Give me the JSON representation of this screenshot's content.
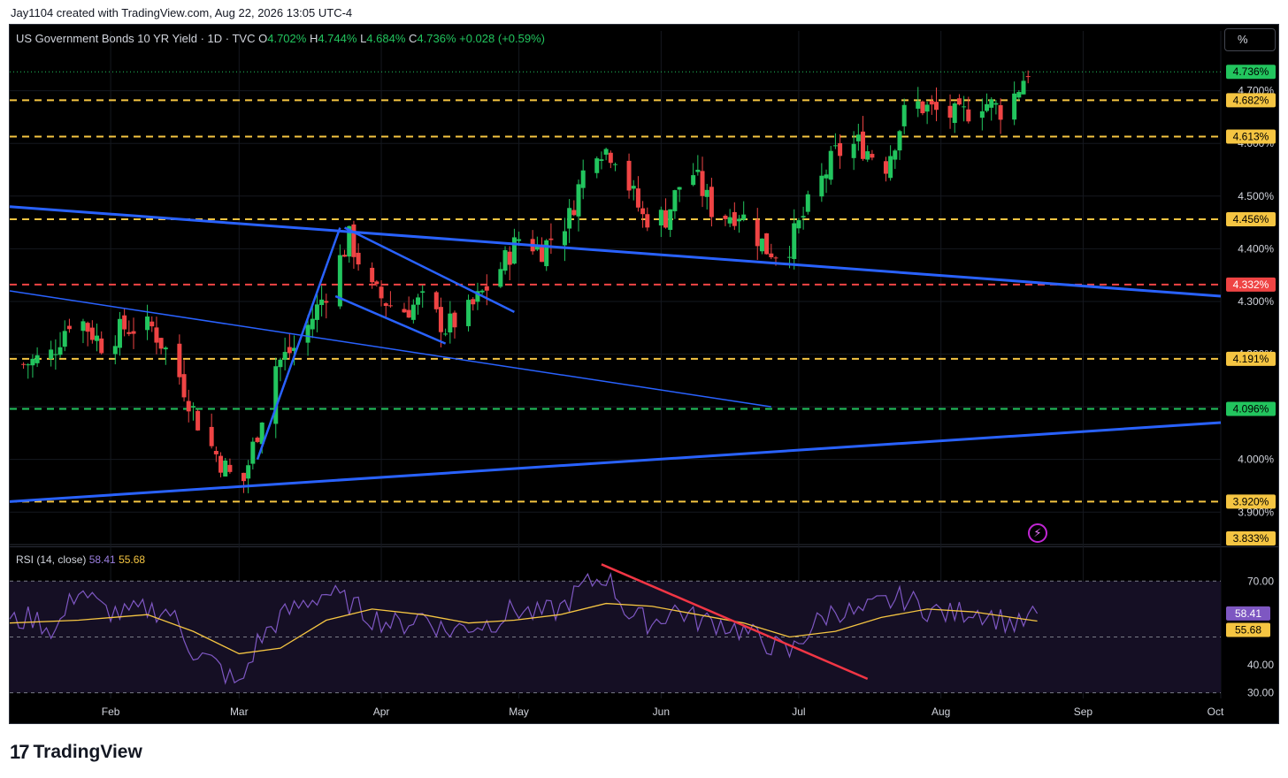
{
  "credit": "Jay1104 created with TradingView.com, Aug 22, 2026 13:05 UTC-4",
  "legend": {
    "symbol": "US Government Bonds 10 YR Yield · 1D · TVC",
    "open_label": "O",
    "open": "4.702%",
    "high_label": "H",
    "high": "4.744%",
    "low_label": "L",
    "low": "4.684%",
    "close_label": "C",
    "close": "4.736%",
    "change": "+0.028 (+0.59%)"
  },
  "scale_button": "%",
  "rsi_legend": {
    "label": "RSI (14, close)",
    "rsi": "58.41",
    "ma": "55.68"
  },
  "brand": "TradingView",
  "colors": {
    "up": "#22c55e",
    "down": "#ef4444",
    "trend": "#2962ff",
    "level": "#f5c542",
    "support": "#22c55e",
    "resistance": "#ef4444",
    "rsi": "#7e57c2",
    "rsi_ma": "#f5c542"
  },
  "chart_data": [
    {
      "type": "candlestick",
      "title": "US Government Bonds 10 YR Yield · 1D · TVC",
      "ylim": [
        3.84,
        4.78
      ],
      "y_ticks": [
        "4.700%",
        "4.600%",
        "4.500%",
        "4.400%",
        "4.300%",
        "4.200%",
        "4.100%",
        "4.000%",
        "3.900%"
      ],
      "x_ticks": [
        "Feb",
        "Mar",
        "Apr",
        "May",
        "Jun",
        "Jul",
        "Aug",
        "Sep",
        "Oct"
      ],
      "last": 4.736,
      "price_labels": [
        {
          "value": "4.736%",
          "kind": "last"
        },
        {
          "value": "4.682%",
          "kind": "level"
        },
        {
          "value": "4.613%",
          "kind": "level"
        },
        {
          "value": "4.456%",
          "kind": "level"
        },
        {
          "value": "4.332%",
          "kind": "resistance"
        },
        {
          "value": "4.191%",
          "kind": "level"
        },
        {
          "value": "4.096%",
          "kind": "support"
        },
        {
          "value": "3.920%",
          "kind": "level"
        },
        {
          "value": "3.833%",
          "kind": "level"
        }
      ],
      "close_path": [
        [
          "2026-01-13",
          4.18
        ],
        [
          "2026-01-19",
          4.2
        ],
        [
          "2026-01-24",
          4.28
        ],
        [
          "2026-01-30",
          4.22
        ],
        [
          "2026-02-04",
          4.25
        ],
        [
          "2026-02-10",
          4.25
        ],
        [
          "2026-02-15",
          4.18
        ],
        [
          "2026-02-21",
          4.05
        ],
        [
          "2026-02-27",
          3.97
        ],
        [
          "2026-03-02",
          3.96
        ],
        [
          "2026-03-09",
          4.18
        ],
        [
          "2026-03-14",
          4.22
        ],
        [
          "2026-03-20",
          4.32
        ],
        [
          "2026-03-25",
          4.42
        ],
        [
          "2026-03-30",
          4.32
        ],
        [
          "2026-04-05",
          4.28
        ],
        [
          "2026-04-10",
          4.3
        ],
        [
          "2026-04-15",
          4.25
        ],
        [
          "2026-04-20",
          4.28
        ],
        [
          "2026-04-26",
          4.35
        ],
        [
          "2026-05-01",
          4.42
        ],
        [
          "2026-05-06",
          4.4
        ],
        [
          "2026-05-12",
          4.46
        ],
        [
          "2026-05-17",
          4.6
        ],
        [
          "2026-05-22",
          4.58
        ],
        [
          "2026-05-28",
          4.46
        ],
        [
          "2026-06-02",
          4.46
        ],
        [
          "2026-06-07",
          4.56
        ],
        [
          "2026-06-13",
          4.46
        ],
        [
          "2026-06-18",
          4.47
        ],
        [
          "2026-06-24",
          4.4
        ],
        [
          "2026-06-28",
          4.39
        ],
        [
          "2026-07-03",
          4.48
        ],
        [
          "2026-07-09",
          4.58
        ],
        [
          "2026-07-14",
          4.6
        ],
        [
          "2026-07-20",
          4.56
        ],
        [
          "2026-07-25",
          4.68
        ],
        [
          "2026-07-31",
          4.66
        ],
        [
          "2026-08-05",
          4.65
        ],
        [
          "2026-08-10",
          4.68
        ],
        [
          "2026-08-15",
          4.66
        ],
        [
          "2026-08-20",
          4.74
        ]
      ],
      "trend_lines": [
        {
          "from": [
            "2026-01-10",
            4.48
          ],
          "to": [
            "2026-10-01",
            4.31
          ],
          "width": "thick"
        },
        {
          "from": [
            "2026-01-10",
            3.92
          ],
          "to": [
            "2026-10-01",
            4.07
          ],
          "width": "thick"
        },
        {
          "from": [
            "2026-01-10",
            4.32
          ],
          "to": [
            "2026-06-25",
            4.1
          ],
          "width": "thin"
        },
        {
          "from": [
            "2026-03-05",
            4.0
          ],
          "to": [
            "2026-03-23",
            4.44
          ],
          "width": "medium"
        },
        {
          "from": [
            "2026-03-22",
            4.31
          ],
          "to": [
            "2026-04-15",
            4.22
          ],
          "width": "medium"
        },
        {
          "from": [
            "2026-03-24",
            4.44
          ],
          "to": [
            "2026-04-30",
            4.28
          ],
          "width": "medium"
        }
      ]
    },
    {
      "type": "line",
      "title": "RSI (14, close)",
      "ylim": [
        28,
        78
      ],
      "y_ticks": [
        "70.00",
        "40.00",
        "30.00"
      ],
      "levels": [
        70,
        50,
        30
      ],
      "last_labels": [
        "58.41",
        "55.68"
      ],
      "series": [
        {
          "name": "RSI",
          "values": [
            [
              "2026-01-10",
              55
            ],
            [
              "2026-01-15",
              57
            ],
            [
              "2026-01-20",
              52
            ],
            [
              "2026-01-25",
              68
            ],
            [
              "2026-01-30",
              60
            ],
            [
              "2026-02-04",
              58
            ],
            [
              "2026-02-09",
              60
            ],
            [
              "2026-02-14",
              59
            ],
            [
              "2026-02-19",
              45
            ],
            [
              "2026-02-24",
              40
            ],
            [
              "2026-03-01",
              32
            ],
            [
              "2026-03-05",
              48
            ],
            [
              "2026-03-10",
              57
            ],
            [
              "2026-03-15",
              62
            ],
            [
              "2026-03-20",
              66
            ],
            [
              "2026-03-25",
              62
            ],
            [
              "2026-03-30",
              57
            ],
            [
              "2026-04-05",
              54
            ],
            [
              "2026-04-10",
              58
            ],
            [
              "2026-04-15",
              52
            ],
            [
              "2026-04-20",
              54
            ],
            [
              "2026-04-25",
              55
            ],
            [
              "2026-04-30",
              60
            ],
            [
              "2026-05-05",
              58
            ],
            [
              "2026-05-10",
              60
            ],
            [
              "2026-05-15",
              68
            ],
            [
              "2026-05-20",
              72
            ],
            [
              "2026-05-25",
              58
            ],
            [
              "2026-05-30",
              55
            ],
            [
              "2026-06-04",
              60
            ],
            [
              "2026-06-09",
              56
            ],
            [
              "2026-06-14",
              55
            ],
            [
              "2026-06-19",
              52
            ],
            [
              "2026-06-24",
              48
            ],
            [
              "2026-06-29",
              44
            ],
            [
              "2026-07-04",
              54
            ],
            [
              "2026-07-09",
              60
            ],
            [
              "2026-07-14",
              58
            ],
            [
              "2026-07-19",
              62
            ],
            [
              "2026-07-24",
              64
            ],
            [
              "2026-07-29",
              60
            ],
            [
              "2026-08-03",
              58
            ],
            [
              "2026-08-08",
              60
            ],
            [
              "2026-08-13",
              57
            ],
            [
              "2026-08-18",
              54
            ],
            [
              "2026-08-22",
              58.41
            ]
          ]
        },
        {
          "name": "MA",
          "values": [
            [
              "2026-01-10",
              55
            ],
            [
              "2026-01-25",
              56
            ],
            [
              "2026-02-09",
              58
            ],
            [
              "2026-02-19",
              52
            ],
            [
              "2026-03-01",
              44
            ],
            [
              "2026-03-10",
              46
            ],
            [
              "2026-03-20",
              56
            ],
            [
              "2026-03-30",
              60
            ],
            [
              "2026-04-10",
              58
            ],
            [
              "2026-04-20",
              55
            ],
            [
              "2026-04-30",
              56
            ],
            [
              "2026-05-10",
              58
            ],
            [
              "2026-05-20",
              62
            ],
            [
              "2026-05-30",
              61
            ],
            [
              "2026-06-09",
              58
            ],
            [
              "2026-06-19",
              55
            ],
            [
              "2026-06-29",
              50
            ],
            [
              "2026-07-09",
              52
            ],
            [
              "2026-07-19",
              57
            ],
            [
              "2026-07-29",
              60
            ],
            [
              "2026-08-08",
              59
            ],
            [
              "2026-08-22",
              55.68
            ]
          ]
        }
      ],
      "trend_line": {
        "from": [
          "2026-05-19",
          76
        ],
        "to": [
          "2026-07-16",
          35
        ]
      }
    }
  ]
}
